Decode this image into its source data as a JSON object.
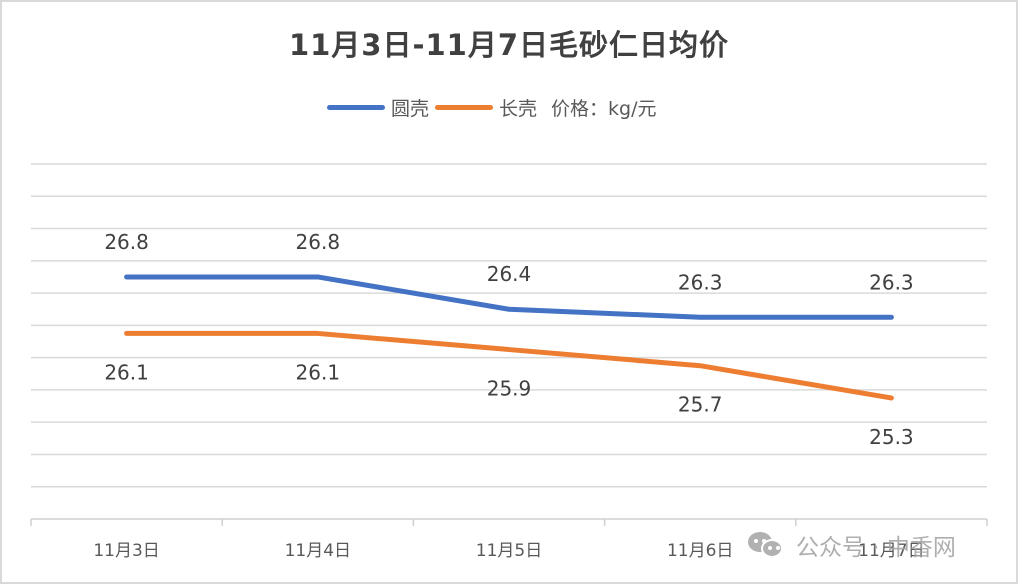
{
  "chart_data": {
    "type": "line",
    "title": "11月3日-11月7日毛砂仁日均价",
    "xlabel": "",
    "ylabel": "",
    "unit_note": "价格：kg/元",
    "categories": [
      "11月3日",
      "11月4日",
      "11月5日",
      "11月6日",
      "11月7日"
    ],
    "series": [
      {
        "name": "圆壳",
        "color": "#4472C4",
        "values": [
          26.8,
          26.8,
          26.4,
          26.3,
          26.3
        ],
        "label_position": "above"
      },
      {
        "name": "长壳",
        "color": "#ED7D31",
        "values": [
          26.1,
          26.1,
          25.9,
          25.7,
          25.3
        ],
        "label_position": "below"
      }
    ],
    "ylim": [
      23.8,
      28.2
    ],
    "ytick_step": 0.4,
    "y_axis_labels_visible": false,
    "grid": true,
    "legend_position": "top"
  },
  "legend": {
    "items": [
      {
        "label": "圆壳",
        "color": "#4472C4"
      },
      {
        "label": "长壳",
        "color": "#ED7D31"
      }
    ],
    "unit": "价格：kg/元"
  },
  "watermark": {
    "icon": "wechat-icon",
    "text": "公众号 · 中香网"
  }
}
